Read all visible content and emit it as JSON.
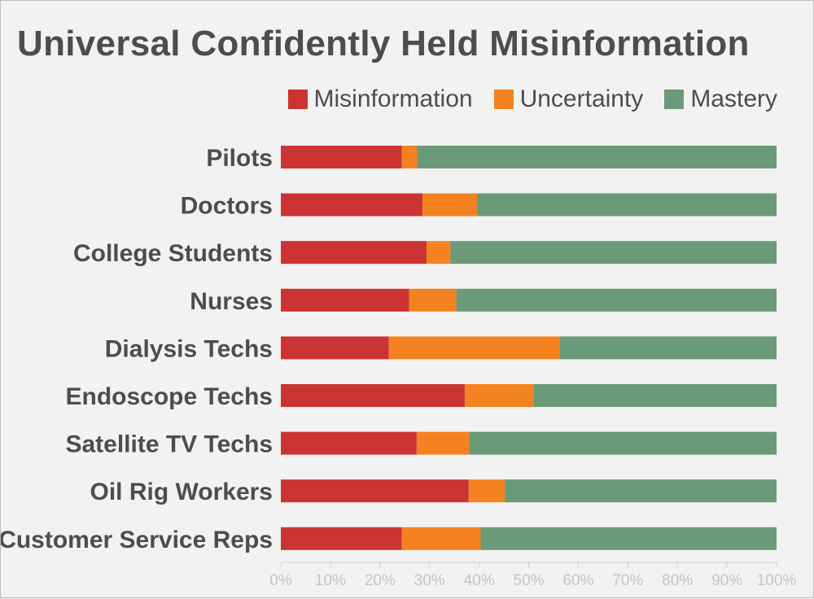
{
  "chart_data": {
    "type": "bar",
    "orientation": "horizontal",
    "stacked": true,
    "title": "Universal Confidently Held Misinformation",
    "xlabel": "",
    "ylabel": "",
    "xlim": [
      0,
      100
    ],
    "x_ticks": [
      "0%",
      "10%",
      "20%",
      "30%",
      "40%",
      "50%",
      "60%",
      "70%",
      "80%",
      "90%",
      "100%"
    ],
    "legend_position": "top-right",
    "categories": [
      "Pilots",
      "Doctors",
      "College Students",
      "Nurses",
      "Dialysis Techs",
      "Endoscope Techs",
      "Satellite TV Techs",
      "Oil Rig Workers",
      "Customer Service Reps"
    ],
    "series": [
      {
        "name": "Misinformation",
        "color": "#cc3333",
        "values": [
          24.4,
          28.6,
          29.4,
          25.9,
          21.8,
          37.1,
          27.4,
          37.9,
          24.4
        ]
      },
      {
        "name": "Uncertainty",
        "color": "#f58220",
        "values": [
          3.1,
          11.0,
          4.8,
          9.5,
          34.4,
          13.9,
          10.6,
          7.3,
          15.9
        ]
      },
      {
        "name": "Mastery",
        "color": "#6a9a78",
        "values": [
          72.5,
          60.4,
          65.8,
          64.6,
          43.8,
          49.0,
          62.0,
          54.8,
          59.7
        ]
      }
    ]
  }
}
